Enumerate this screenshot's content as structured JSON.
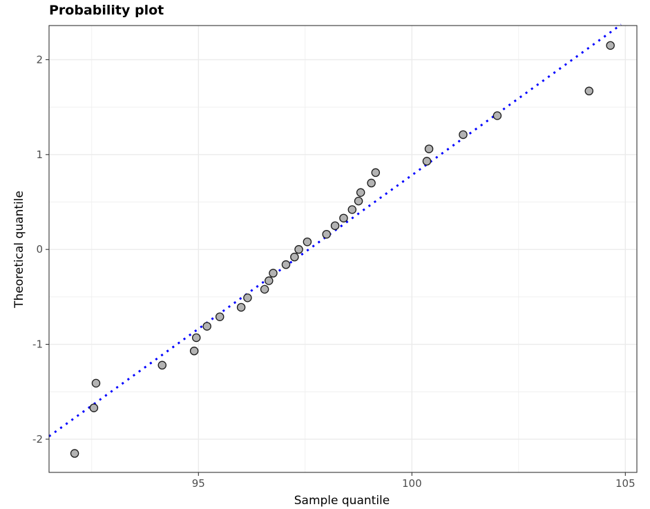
{
  "chart_data": {
    "type": "scatter",
    "title": "Probability plot",
    "xlabel": "Sample quantile",
    "ylabel": "Theoretical quantile",
    "xlim": [
      91.5,
      105.27
    ],
    "ylim": [
      -2.35,
      2.36
    ],
    "x_ticks": [
      95,
      100,
      105
    ],
    "y_ticks": [
      -2,
      -1,
      0,
      1,
      2
    ],
    "grid": true,
    "colors": {
      "points_fill": "#b3b3b3",
      "points_stroke": "#1a1a1a",
      "line": "#0000ff",
      "grid": "#ebebeb",
      "panel_border": "#333333"
    },
    "reference_line": {
      "style": "dotted",
      "points": [
        [
          91.5,
          -1.97
        ],
        [
          104.9,
          2.37
        ]
      ]
    },
    "points": [
      {
        "x": 92.1,
        "y": -2.15
      },
      {
        "x": 92.55,
        "y": -1.67
      },
      {
        "x": 92.6,
        "y": -1.41
      },
      {
        "x": 94.15,
        "y": -1.22
      },
      {
        "x": 94.9,
        "y": -1.07
      },
      {
        "x": 94.95,
        "y": -0.93
      },
      {
        "x": 95.2,
        "y": -0.81
      },
      {
        "x": 95.5,
        "y": -0.71
      },
      {
        "x": 96.0,
        "y": -0.61
      },
      {
        "x": 96.15,
        "y": -0.51
      },
      {
        "x": 96.55,
        "y": -0.42
      },
      {
        "x": 96.65,
        "y": -0.33
      },
      {
        "x": 96.75,
        "y": -0.25
      },
      {
        "x": 97.05,
        "y": -0.16
      },
      {
        "x": 97.25,
        "y": -0.08
      },
      {
        "x": 97.35,
        "y": 0.0
      },
      {
        "x": 97.55,
        "y": 0.08
      },
      {
        "x": 98.0,
        "y": 0.16
      },
      {
        "x": 98.2,
        "y": 0.25
      },
      {
        "x": 98.4,
        "y": 0.33
      },
      {
        "x": 98.6,
        "y": 0.42
      },
      {
        "x": 98.75,
        "y": 0.51
      },
      {
        "x": 98.8,
        "y": 0.6
      },
      {
        "x": 99.05,
        "y": 0.7
      },
      {
        "x": 99.15,
        "y": 0.81
      },
      {
        "x": 100.35,
        "y": 0.93
      },
      {
        "x": 100.4,
        "y": 1.06
      },
      {
        "x": 101.2,
        "y": 1.21
      },
      {
        "x": 102.0,
        "y": 1.41
      },
      {
        "x": 104.15,
        "y": 1.67
      },
      {
        "x": 104.65,
        "y": 2.15
      }
    ]
  }
}
